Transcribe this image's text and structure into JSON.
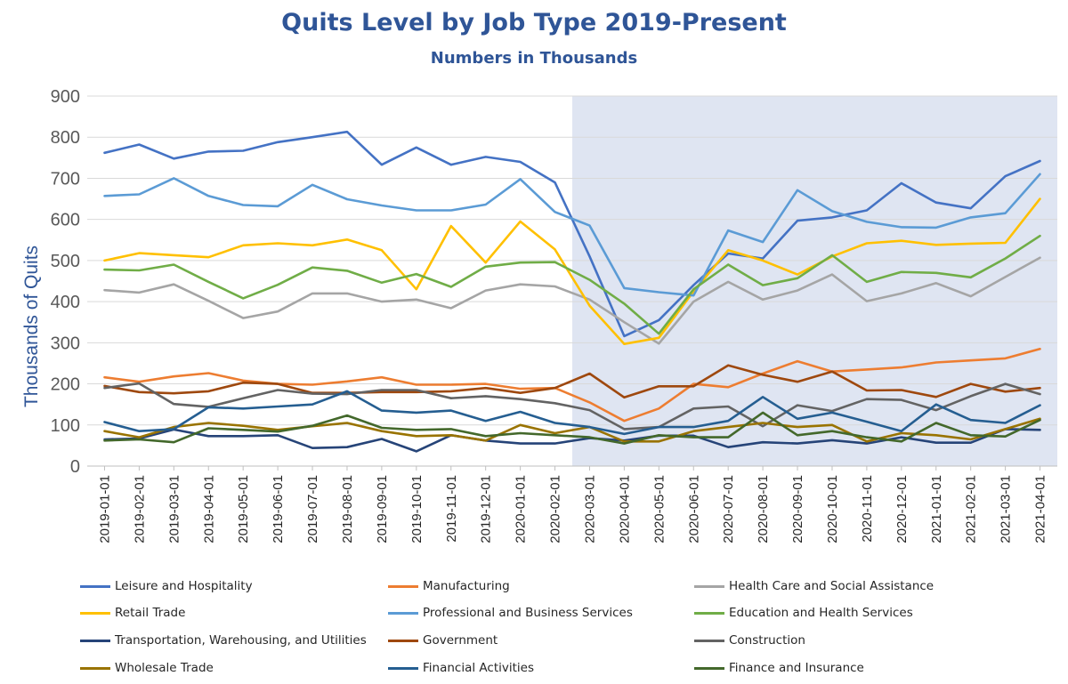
{
  "chart_data": {
    "type": "line",
    "title": "Quits Level by Job Type 2019-Present",
    "subtitle": "Numbers in Thousands",
    "ylabel": "Thousands of Quits",
    "xlabel": "",
    "ylim": [
      0,
      900
    ],
    "yticks": [
      0,
      100,
      200,
      300,
      400,
      500,
      600,
      700,
      800,
      900
    ],
    "grid": true,
    "legend_position": "bottom",
    "shaded_region": {
      "from": "2020-03-01",
      "to": "2021-04-01",
      "color": "#dfe5f2"
    },
    "x": [
      "2019-01-01",
      "2019-02-01",
      "2019-03-01",
      "2019-04-01",
      "2019-05-01",
      "2019-06-01",
      "2019-07-01",
      "2019-08-01",
      "2019-09-01",
      "2019-10-01",
      "2019-11-01",
      "2019-12-01",
      "2020-01-01",
      "2020-02-01",
      "2020-03-01",
      "2020-04-01",
      "2020-05-01",
      "2020-06-01",
      "2020-07-01",
      "2020-08-01",
      "2020-09-01",
      "2020-10-01",
      "2020-11-01",
      "2020-12-01",
      "2021-01-01",
      "2021-02-01",
      "2021-03-01",
      "2021-04-01"
    ],
    "series": [
      {
        "name": "Leisure and Hospitality",
        "color": "#4472c4",
        "values": [
          762,
          782,
          748,
          765,
          767,
          788,
          800,
          813,
          733,
          775,
          733,
          752,
          740,
          690,
          510,
          316,
          355,
          440,
          517,
          505,
          597,
          605,
          622,
          688,
          641,
          627,
          705,
          742
        ]
      },
      {
        "name": "Manufacturing",
        "color": "#ed7d31",
        "values": [
          216,
          205,
          218,
          226,
          208,
          200,
          198,
          206,
          216,
          198,
          198,
          200,
          188,
          190,
          155,
          110,
          140,
          200,
          192,
          225,
          255,
          230,
          235,
          240,
          252,
          257,
          262,
          285
        ]
      },
      {
        "name": "Health Care and Social Assistance",
        "color": "#a5a5a5",
        "values": [
          428,
          422,
          442,
          402,
          360,
          376,
          420,
          420,
          400,
          405,
          384,
          427,
          442,
          437,
          405,
          350,
          298,
          400,
          448,
          405,
          427,
          466,
          401,
          420,
          445,
          413,
          460,
          507
        ]
      },
      {
        "name": "Retail Trade",
        "color": "#ffc000",
        "values": [
          500,
          518,
          513,
          508,
          537,
          542,
          537,
          551,
          525,
          430,
          584,
          495,
          595,
          527,
          390,
          297,
          312,
          425,
          525,
          500,
          466,
          510,
          542,
          548,
          538,
          541,
          543,
          650
        ]
      },
      {
        "name": "Professional and Business Services",
        "color": "#5b9bd5",
        "values": [
          657,
          661,
          700,
          657,
          635,
          632,
          684,
          649,
          634,
          622,
          622,
          636,
          698,
          618,
          585,
          433,
          423,
          415,
          573,
          545,
          671,
          620,
          594,
          581,
          580,
          605,
          615,
          710
        ]
      },
      {
        "name": "Education and Health Services",
        "color": "#70ad47",
        "values": [
          478,
          476,
          490,
          448,
          408,
          441,
          483,
          475,
          446,
          467,
          436,
          485,
          495,
          496,
          453,
          395,
          322,
          430,
          490,
          440,
          457,
          513,
          448,
          472,
          470,
          459,
          505,
          560
        ]
      },
      {
        "name": "Transportation, Warehousing, and Utilities",
        "color": "#264478",
        "values": [
          65,
          67,
          89,
          73,
          73,
          75,
          44,
          46,
          66,
          36,
          75,
          62,
          55,
          55,
          68,
          62,
          74,
          74,
          46,
          58,
          55,
          63,
          55,
          70,
          57,
          57,
          90,
          88
        ]
      },
      {
        "name": "Government",
        "color": "#9e480e",
        "values": [
          195,
          180,
          177,
          182,
          203,
          200,
          178,
          178,
          180,
          180,
          182,
          190,
          178,
          190,
          225,
          167,
          194,
          194,
          245,
          222,
          205,
          230,
          184,
          185,
          168,
          200,
          181,
          190
        ]
      },
      {
        "name": "Construction",
        "color": "#636363",
        "values": [
          190,
          201,
          151,
          144,
          165,
          185,
          176,
          175,
          185,
          185,
          165,
          170,
          163,
          153,
          136,
          90,
          95,
          140,
          145,
          97,
          148,
          134,
          163,
          161,
          136,
          170,
          200,
          175
        ]
      },
      {
        "name": "Wholesale Trade",
        "color": "#997300",
        "values": [
          85,
          70,
          95,
          105,
          98,
          88,
          97,
          105,
          85,
          73,
          75,
          62,
          100,
          80,
          95,
          60,
          60,
          85,
          95,
          105,
          95,
          100,
          60,
          80,
          75,
          65,
          90,
          115
        ]
      },
      {
        "name": "Financial Activities",
        "color": "#255e91",
        "values": [
          107,
          85,
          90,
          143,
          140,
          145,
          150,
          182,
          135,
          130,
          135,
          110,
          132,
          105,
          95,
          78,
          95,
          95,
          110,
          168,
          115,
          130,
          108,
          85,
          150,
          112,
          105,
          148
        ]
      },
      {
        "name": "Finance and Insurance",
        "color": "#43682b",
        "values": [
          62,
          65,
          58,
          92,
          88,
          84,
          98,
          123,
          93,
          88,
          90,
          73,
          80,
          75,
          70,
          55,
          75,
          70,
          70,
          130,
          75,
          85,
          70,
          60,
          105,
          75,
          72,
          112
        ]
      }
    ]
  }
}
